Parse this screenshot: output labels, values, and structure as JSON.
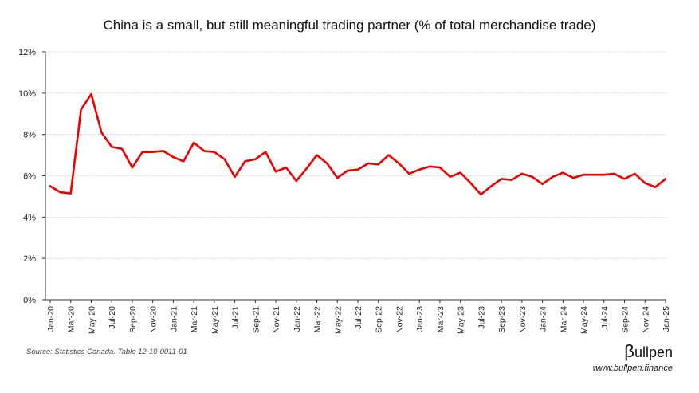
{
  "chart_data": {
    "type": "line",
    "title": "China is a small, but still meaningful trading partner (% of total merchandise trade)",
    "xlabel": "",
    "ylabel": "",
    "ylim": [
      0,
      12
    ],
    "yticks": [
      "0%",
      "2%",
      "4%",
      "6%",
      "8%",
      "10%",
      "12%"
    ],
    "grid": "horizontal",
    "legend": "none",
    "x": [
      "Jan-20",
      "Feb-20",
      "Mar-20",
      "Apr-20",
      "May-20",
      "Jun-20",
      "Jul-20",
      "Aug-20",
      "Sep-20",
      "Oct-20",
      "Nov-20",
      "Dec-20",
      "Jan-21",
      "Feb-21",
      "Mar-21",
      "Apr-21",
      "May-21",
      "Jun-21",
      "Jul-21",
      "Aug-21",
      "Sep-21",
      "Oct-21",
      "Nov-21",
      "Dec-21",
      "Jan-22",
      "Feb-22",
      "Mar-22",
      "Apr-22",
      "May-22",
      "Jun-22",
      "Jul-22",
      "Aug-22",
      "Sep-22",
      "Oct-22",
      "Nov-22",
      "Dec-22",
      "Jan-23",
      "Feb-23",
      "Mar-23",
      "Apr-23",
      "May-23",
      "Jun-23",
      "Jul-23",
      "Aug-23",
      "Sep-23",
      "Oct-23",
      "Nov-23",
      "Dec-23",
      "Jan-24",
      "Feb-24",
      "Mar-24",
      "Apr-24",
      "May-24",
      "Jun-24",
      "Jul-24",
      "Aug-24",
      "Sep-24",
      "Oct-24",
      "Nov-24",
      "Dec-24",
      "Jan-25"
    ],
    "xtick_labels": [
      "Jan-20",
      "Mar-20",
      "May-20",
      "Jul-20",
      "Sep-20",
      "Nov-20",
      "Jan-21",
      "Mar-21",
      "May-21",
      "Jul-21",
      "Sep-21",
      "Nov-21",
      "Jan-22",
      "Mar-22",
      "May-22",
      "Jul-22",
      "Sep-22",
      "Nov-22",
      "Jan-23",
      "Mar-23",
      "May-23",
      "Jul-23",
      "Sep-23",
      "Nov-23",
      "Jan-24",
      "Mar-24",
      "May-24",
      "Jul-24",
      "Sep-24",
      "Nov-24",
      "Jan-25"
    ],
    "series": [
      {
        "values": [
          5.5,
          5.2,
          5.15,
          9.2,
          9.95,
          8.1,
          7.4,
          7.3,
          6.4,
          7.15,
          7.15,
          7.2,
          6.9,
          6.7,
          7.6,
          7.2,
          7.15,
          6.8,
          5.95,
          6.7,
          6.8,
          7.15,
          6.2,
          6.4,
          5.75,
          6.35,
          7.0,
          6.6,
          5.9,
          6.25,
          6.3,
          6.6,
          6.55,
          7.0,
          6.6,
          6.1,
          6.3,
          6.45,
          6.4,
          5.95,
          6.15,
          5.65,
          5.1,
          5.5,
          5.85,
          5.8,
          6.1,
          5.95,
          5.6,
          5.95,
          6.15,
          5.9,
          6.05,
          6.05,
          6.05,
          6.1,
          5.85,
          6.1,
          5.65,
          5.45,
          5.85
        ],
        "color": "#ee0000"
      }
    ]
  },
  "source": "Source: Statistics Canada. Table 12-10-0011-01",
  "brand": {
    "logo_mark": "β",
    "logo_text": "ullpen",
    "url": "www.bullpen.finance"
  }
}
